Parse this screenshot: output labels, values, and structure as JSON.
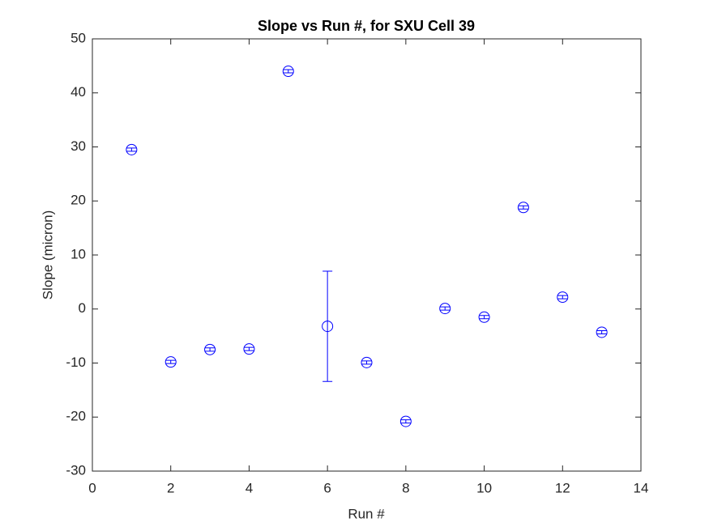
{
  "chart_data": {
    "type": "errorbar",
    "title": "Slope vs Run #, for SXU Cell 39",
    "x_label": "Run #",
    "y_label": "Slope (micron)",
    "x": [
      1,
      2,
      3,
      4,
      5,
      6,
      7,
      8,
      9,
      10,
      11,
      12,
      13
    ],
    "series": [
      {
        "color": "#0000ff",
        "values": [
          29.5,
          -9.8,
          -7.5,
          -7.4,
          44.0,
          -3.2,
          -9.9,
          -20.8,
          0.1,
          -1.5,
          18.8,
          2.2,
          -4.3
        ],
        "errors": [
          0.3,
          0.3,
          0.3,
          0.3,
          0.3,
          10.2,
          0.3,
          0.3,
          0.3,
          0.3,
          0.3,
          0.3,
          0.3
        ]
      }
    ],
    "xlim": [
      0,
      14
    ],
    "xticks": [
      0,
      2,
      4,
      6,
      8,
      10,
      12,
      14
    ],
    "ylim": [
      -30,
      50
    ],
    "yticks": [
      -30,
      -20,
      -10,
      0,
      10,
      20,
      30,
      40,
      50
    ],
    "grid": false
  }
}
